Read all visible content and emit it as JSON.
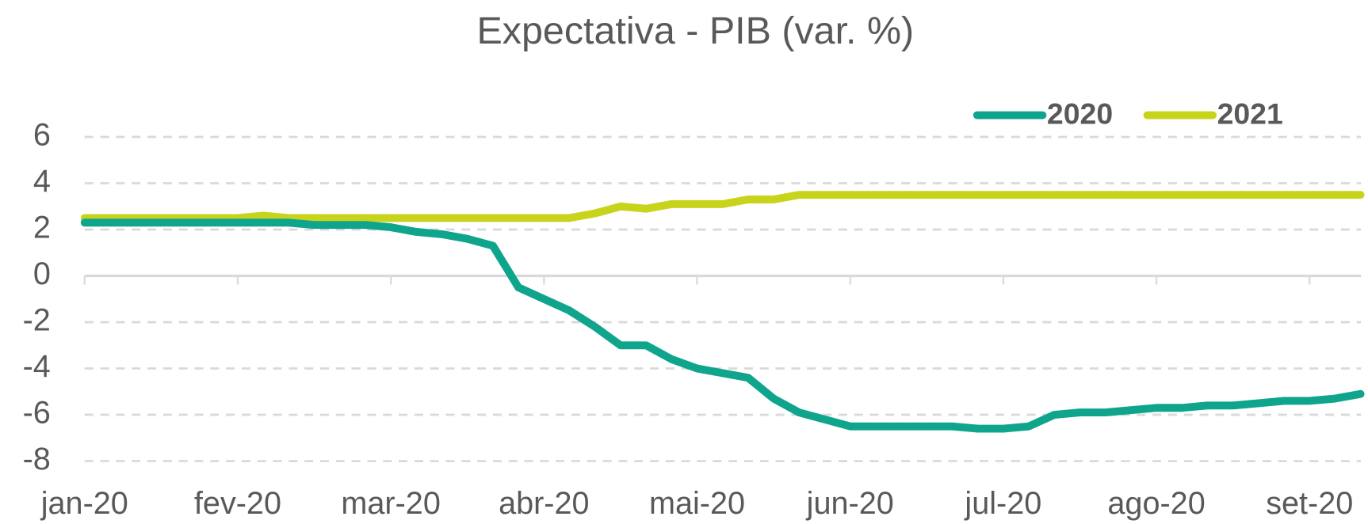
{
  "chart_data": {
    "type": "line",
    "title": "Expectativa - PIB (var. %)",
    "categories": [
      "jan-20",
      null,
      null,
      null,
      null,
      null,
      "fev-20",
      null,
      null,
      null,
      null,
      null,
      "mar-20",
      null,
      null,
      null,
      null,
      null,
      "abr-20",
      null,
      null,
      null,
      null,
      null,
      "mai-20",
      null,
      null,
      null,
      null,
      null,
      "jun-20",
      null,
      null,
      null,
      null,
      null,
      "jul-20",
      null,
      null,
      null,
      null,
      null,
      "ago-20",
      null,
      null,
      null,
      null,
      null,
      "set-20",
      null,
      null
    ],
    "series": [
      {
        "name": "2020",
        "color": "#0fa48c",
        "values": [
          2.3,
          2.3,
          2.3,
          2.3,
          2.3,
          2.3,
          2.3,
          2.3,
          2.3,
          2.2,
          2.2,
          2.2,
          2.1,
          1.9,
          1.8,
          1.6,
          1.3,
          -0.5,
          -1.0,
          -1.5,
          -2.2,
          -3.0,
          -3.0,
          -3.6,
          -4.0,
          -4.2,
          -4.4,
          -5.3,
          -5.9,
          -6.2,
          -6.5,
          -6.5,
          -6.5,
          -6.5,
          -6.5,
          -6.6,
          -6.6,
          -6.5,
          -6.0,
          -5.9,
          -5.9,
          -5.8,
          -5.7,
          -5.7,
          -5.6,
          -5.6,
          -5.5,
          -5.4,
          -5.4,
          -5.3,
          -5.1
        ]
      },
      {
        "name": "2021",
        "color": "#c8d41c",
        "values": [
          2.5,
          2.5,
          2.5,
          2.5,
          2.5,
          2.5,
          2.5,
          2.6,
          2.5,
          2.5,
          2.5,
          2.5,
          2.5,
          2.5,
          2.5,
          2.5,
          2.5,
          2.5,
          2.5,
          2.5,
          2.7,
          3.0,
          2.9,
          3.1,
          3.1,
          3.1,
          3.3,
          3.3,
          3.5,
          3.5,
          3.5,
          3.5,
          3.5,
          3.5,
          3.5,
          3.5,
          3.5,
          3.5,
          3.5,
          3.5,
          3.5,
          3.5,
          3.5,
          3.5,
          3.5,
          3.5,
          3.5,
          3.5,
          3.5,
          3.5,
          3.5
        ]
      }
    ],
    "ylim": [
      -8,
      6
    ],
    "yticks": [
      -8,
      -6,
      -4,
      -2,
      0,
      2,
      4,
      6
    ],
    "grid": true,
    "legend": "top-right"
  }
}
